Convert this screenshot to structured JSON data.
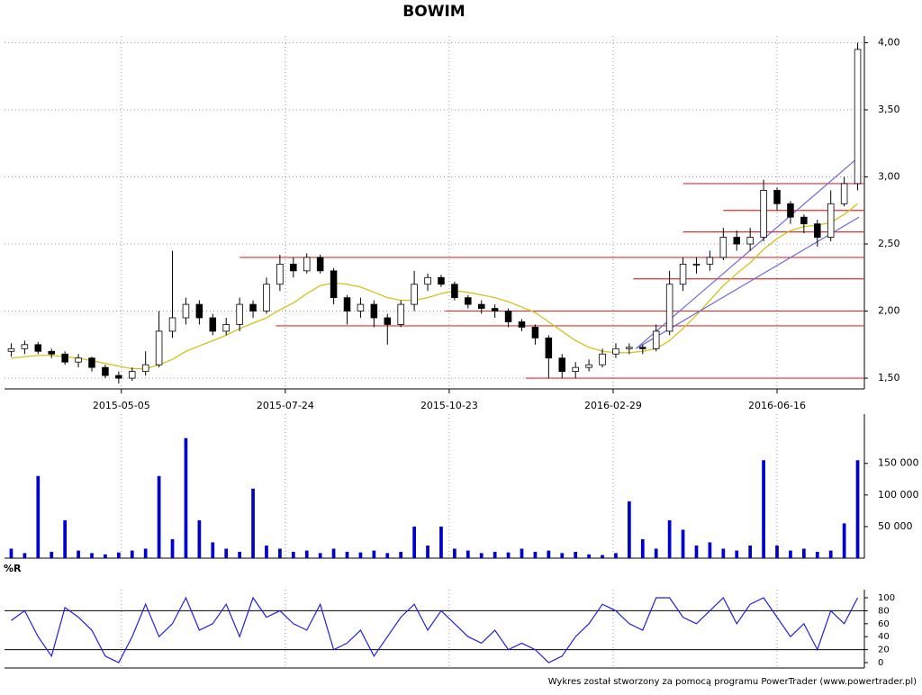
{
  "chart_data": [
    {
      "type": "candlestick",
      "title": "BOWIM",
      "xlim": [
        0,
        64
      ],
      "xticks": [
        {
          "value": 8.7,
          "label": "2015-05-05"
        },
        {
          "value": 20.9,
          "label": "2015-07-24"
        },
        {
          "value": 33.1,
          "label": "2015-10-23"
        },
        {
          "value": 45.3,
          "label": "2016-02-29"
        },
        {
          "value": 57.5,
          "label": "2016-06-16"
        }
      ],
      "ylim": [
        1.42,
        4.05
      ],
      "yticks": [
        {
          "value": 1.5,
          "label": "1,50"
        },
        {
          "value": 2,
          "label": "2,00"
        },
        {
          "value": 2.5,
          "label": "2,50"
        },
        {
          "value": 3,
          "label": "3,00"
        },
        {
          "value": 3.5,
          "label": "3,50"
        },
        {
          "value": 4,
          "label": "4,00"
        }
      ],
      "grid": true,
      "opens": [
        1.7,
        1.72,
        1.75,
        1.7,
        1.68,
        1.62,
        1.65,
        1.58,
        1.52,
        1.5,
        1.55,
        1.6,
        1.85,
        1.95,
        2.05,
        1.95,
        1.85,
        1.9,
        2.05,
        2.0,
        2.2,
        2.35,
        2.3,
        2.4,
        2.3,
        2.1,
        2.0,
        2.05,
        1.95,
        1.9,
        2.05,
        2.2,
        2.25,
        2.2,
        2.1,
        2.05,
        2.02,
        2.0,
        1.92,
        1.88,
        1.8,
        1.65,
        1.55,
        1.58,
        1.6,
        1.68,
        1.72,
        1.73,
        1.72,
        1.85,
        2.2,
        2.35,
        2.35,
        2.4,
        2.55,
        2.5,
        2.55,
        2.9,
        2.8,
        2.7,
        2.65,
        2.55,
        2.8,
        2.95
      ],
      "highs": [
        1.76,
        1.78,
        1.77,
        1.72,
        1.7,
        1.68,
        1.66,
        1.6,
        1.55,
        1.58,
        1.7,
        2.0,
        2.45,
        2.1,
        2.08,
        1.98,
        1.95,
        2.1,
        2.08,
        2.25,
        2.42,
        2.4,
        2.43,
        2.42,
        2.32,
        2.12,
        2.1,
        2.08,
        1.98,
        2.08,
        2.3,
        2.28,
        2.27,
        2.22,
        2.12,
        2.08,
        2.05,
        2.02,
        1.94,
        1.9,
        1.82,
        1.68,
        1.62,
        1.64,
        1.72,
        1.76,
        1.76,
        1.75,
        1.9,
        2.3,
        2.4,
        2.4,
        2.45,
        2.62,
        2.6,
        2.62,
        2.98,
        2.92,
        2.82,
        2.72,
        2.68,
        2.9,
        3.0,
        4.0
      ],
      "lows": [
        1.66,
        1.68,
        1.68,
        1.65,
        1.6,
        1.58,
        1.55,
        1.5,
        1.46,
        1.48,
        1.52,
        1.58,
        1.8,
        1.9,
        1.9,
        1.82,
        1.82,
        1.85,
        1.95,
        1.98,
        2.15,
        2.25,
        2.28,
        2.28,
        2.05,
        1.9,
        1.95,
        1.88,
        1.75,
        1.88,
        2.0,
        2.15,
        2.18,
        2.08,
        2.02,
        1.98,
        1.95,
        1.88,
        1.85,
        1.75,
        1.5,
        1.5,
        1.5,
        1.55,
        1.58,
        1.65,
        1.68,
        1.68,
        1.7,
        1.82,
        2.15,
        2.28,
        2.3,
        2.38,
        2.45,
        2.45,
        2.52,
        2.75,
        2.65,
        2.58,
        2.48,
        2.52,
        2.78,
        2.9
      ],
      "closes": [
        1.72,
        1.75,
        1.7,
        1.68,
        1.62,
        1.65,
        1.58,
        1.52,
        1.5,
        1.55,
        1.6,
        1.85,
        1.95,
        2.05,
        1.95,
        1.85,
        1.9,
        2.05,
        2.0,
        2.2,
        2.35,
        2.3,
        2.4,
        2.3,
        2.1,
        2.0,
        2.05,
        1.95,
        1.9,
        2.05,
        2.2,
        2.25,
        2.2,
        2.1,
        2.05,
        2.02,
        2.0,
        1.92,
        1.88,
        1.8,
        1.65,
        1.55,
        1.58,
        1.6,
        1.68,
        1.72,
        1.73,
        1.72,
        1.85,
        2.2,
        2.35,
        2.35,
        2.4,
        2.55,
        2.5,
        2.55,
        2.9,
        2.8,
        2.7,
        2.65,
        2.55,
        2.8,
        2.95,
        3.95
      ],
      "moving_average": {
        "color": "#d4c21a",
        "values": [
          1.65,
          1.66,
          1.67,
          1.67,
          1.66,
          1.65,
          1.63,
          1.61,
          1.59,
          1.57,
          1.57,
          1.6,
          1.64,
          1.7,
          1.74,
          1.78,
          1.82,
          1.87,
          1.91,
          1.95,
          2.01,
          2.06,
          2.13,
          2.19,
          2.21,
          2.2,
          2.18,
          2.14,
          2.1,
          2.08,
          2.08,
          2.1,
          2.13,
          2.15,
          2.14,
          2.12,
          2.1,
          2.07,
          2.03,
          1.99,
          1.92,
          1.85,
          1.78,
          1.73,
          1.7,
          1.69,
          1.69,
          1.7,
          1.72,
          1.78,
          1.87,
          1.97,
          2.08,
          2.19,
          2.28,
          2.36,
          2.46,
          2.54,
          2.6,
          2.63,
          2.64,
          2.66,
          2.72,
          2.8
        ]
      },
      "levels": {
        "color": "#e03030",
        "items": [
          {
            "value": 2.95,
            "from": 50.5
          },
          {
            "value": 2.75,
            "from": 53.5
          },
          {
            "value": 2.59,
            "from": 50.5
          },
          {
            "value": 2.4,
            "from": 17.5
          },
          {
            "value": 2.24,
            "from": 46.8
          },
          {
            "value": 2.0,
            "from": 32.8
          },
          {
            "value": 1.89,
            "from": 20.2
          },
          {
            "value": 1.5,
            "from": 38.8
          }
        ]
      },
      "trend_lines": {
        "color": "#6a6ad8",
        "items": [
          {
            "x": [
              47,
              63.6
            ],
            "y": [
              1.72,
              3.15
            ]
          },
          {
            "x": [
              47,
              63.6
            ],
            "y": [
              1.72,
              2.7
            ]
          }
        ]
      }
    },
    {
      "type": "bar",
      "color": "#0000cc",
      "ylim": [
        0,
        228000
      ],
      "yticks": [
        {
          "value": 50000,
          "label": "50 000"
        },
        {
          "value": 100000,
          "label": "100 000"
        },
        {
          "value": 150000,
          "label": "150 000"
        }
      ],
      "values": [
        15000,
        8000,
        130000,
        10000,
        60000,
        12000,
        8000,
        6000,
        9000,
        12000,
        15000,
        130000,
        30000,
        190000,
        60000,
        25000,
        15000,
        10000,
        110000,
        20000,
        15000,
        10000,
        12000,
        8000,
        15000,
        10000,
        9000,
        12000,
        8000,
        10000,
        50000,
        20000,
        50000,
        15000,
        12000,
        8000,
        10000,
        9000,
        15000,
        10000,
        12000,
        8000,
        10000,
        6000,
        5000,
        8000,
        90000,
        30000,
        15000,
        60000,
        45000,
        20000,
        25000,
        15000,
        12000,
        20000,
        155000,
        20000,
        12000,
        15000,
        10000,
        12000,
        55000,
        155000
      ]
    },
    {
      "type": "line",
      "title": "%R",
      "color": "#2020dd",
      "ylim": [
        -8.3,
        112.5
      ],
      "yticks": [
        0,
        20,
        40,
        60,
        80,
        100
      ],
      "reference_lines": [
        20,
        80
      ],
      "values": [
        65,
        80,
        40,
        10,
        85,
        70,
        50,
        10,
        0,
        40,
        90,
        40,
        60,
        100,
        50,
        60,
        90,
        40,
        100,
        70,
        80,
        60,
        50,
        90,
        20,
        30,
        50,
        10,
        40,
        70,
        90,
        50,
        80,
        60,
        40,
        30,
        50,
        20,
        30,
        20,
        0,
        10,
        40,
        60,
        90,
        80,
        60,
        50,
        100,
        100,
        70,
        60,
        80,
        100,
        60,
        90,
        100,
        70,
        40,
        60,
        20,
        80,
        60,
        100
      ]
    }
  ],
  "footer": "Wykres został stworzony za pomocą programu PowerTrader (www.powertrader.pl)"
}
